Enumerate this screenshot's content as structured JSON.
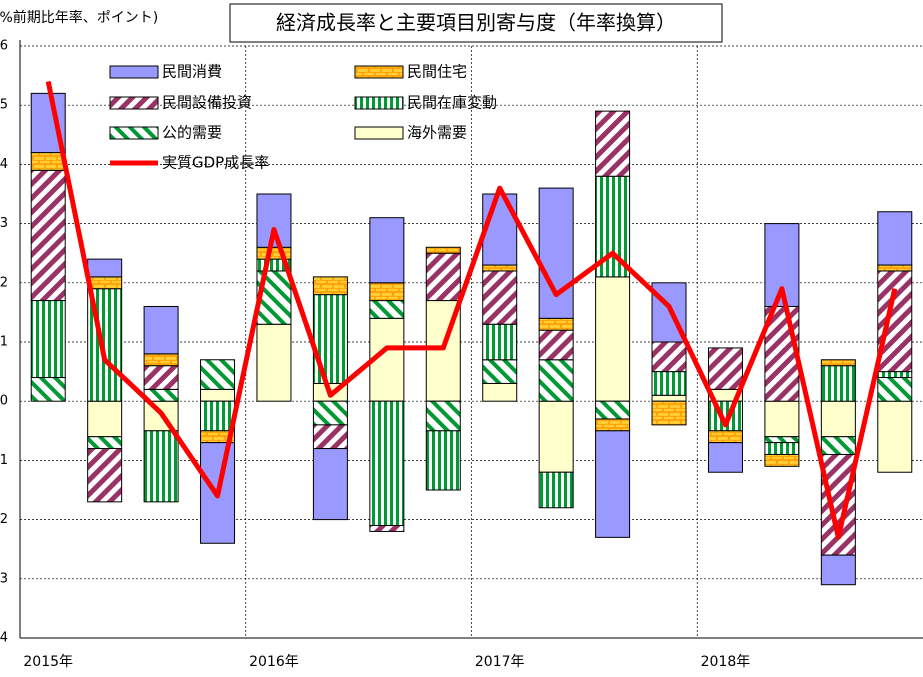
{
  "chart_data": {
    "type": "bar",
    "title": "経済成長率と主要項目別寄与度（年率換算）",
    "y_label": "(%前期比年率、ポイント)",
    "categories": [
      "2015年",
      null,
      null,
      null,
      "2016年",
      null,
      null,
      null,
      "2017年",
      null,
      null,
      null,
      "2018年",
      null,
      null,
      null
    ],
    "series": [
      {
        "name": "民間消費",
        "color": "#9999ff",
        "values": [
          1.0,
          0.3,
          0.8,
          -1.7,
          0.9,
          -1.2,
          1.1,
          0,
          1.2,
          2.2,
          -1.8,
          1.0,
          -0.5,
          1.4,
          -0.5,
          0.9
        ]
      },
      {
        "name": "民間住宅",
        "color": "#ff9900",
        "values": [
          0.3,
          0.2,
          0.2,
          -0.2,
          0.2,
          0.3,
          0.3,
          0.1,
          0.1,
          0.2,
          -0.2,
          -0.4,
          -0.2,
          -0.2,
          0.1,
          0.1
        ]
      },
      {
        "name": "民間設備投資",
        "color": "#993366",
        "values": [
          2.2,
          -0.9,
          0.4,
          0,
          0,
          -0.4,
          -0.1,
          0.8,
          0.9,
          0.5,
          1.1,
          0.5,
          0.7,
          1.6,
          -1.7,
          1.7
        ]
      },
      {
        "name": "民間在庫変動",
        "color": "#009933",
        "values": [
          1.3,
          1.9,
          -1.2,
          -0.5,
          0.2,
          1.5,
          -2.1,
          -1.0,
          0.6,
          -0.6,
          1.7,
          0.4,
          -0.5,
          -0.2,
          0.6,
          0.1
        ]
      },
      {
        "name": "公的需要",
        "color": "#009933",
        "values": [
          0.4,
          -0.2,
          0.2,
          0.5,
          0.9,
          -0.4,
          0.3,
          -0.5,
          0.4,
          0.7,
          -0.3,
          0,
          0,
          -0.1,
          -0.3,
          0.4
        ]
      },
      {
        "name": "海外需要",
        "color": "#ffffcc",
        "values": [
          0,
          -0.6,
          -0.5,
          0.2,
          1.3,
          0.3,
          1.4,
          1.7,
          0.3,
          -1.2,
          2.1,
          0.1,
          0.2,
          -0.6,
          -0.6,
          -1.2
        ]
      }
    ],
    "line": {
      "name": "実質GDP成長率",
      "color": "#ff0000",
      "values": [
        5.4,
        0.7,
        -0.2,
        -1.6,
        2.9,
        0.1,
        0.9,
        0.9,
        3.6,
        1.8,
        2.5,
        1.6,
        -0.4,
        1.9,
        -2.3,
        1.9
      ]
    },
    "ylim": [
      -4,
      6
    ],
    "yticks": [
      -4,
      -3,
      -2,
      -1,
      0,
      1,
      2,
      3,
      4,
      5,
      6
    ],
    "grid": true
  }
}
